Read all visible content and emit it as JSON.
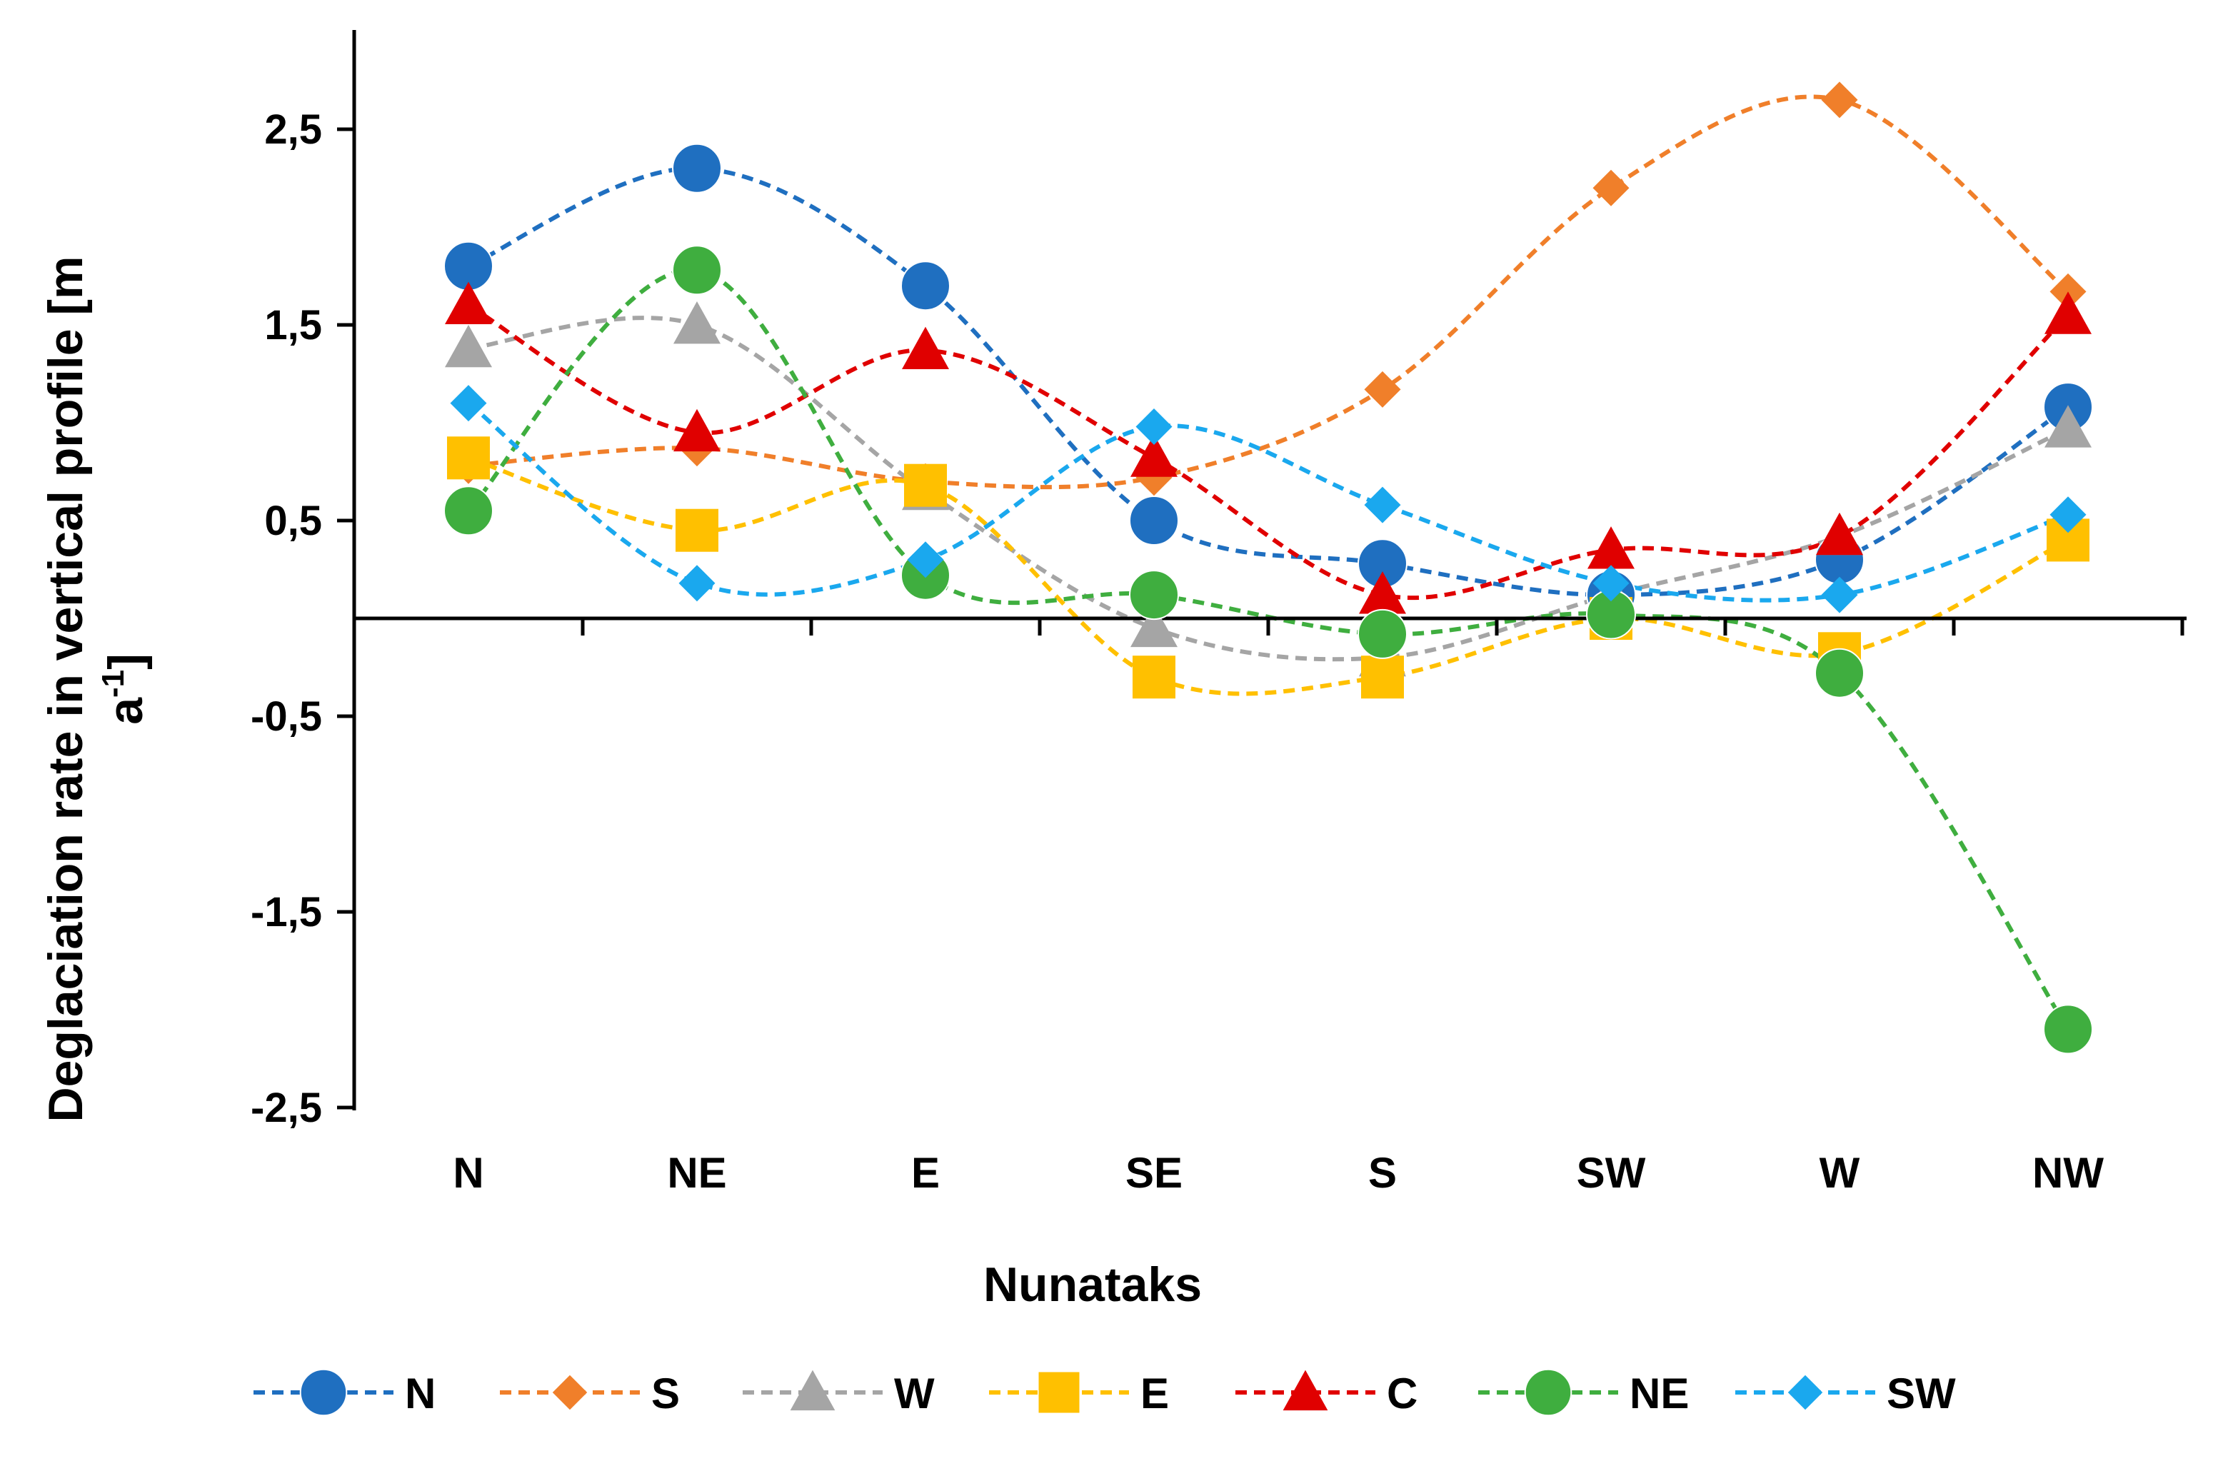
{
  "chart_data": {
    "type": "line",
    "xlabel": "Nunataks",
    "ylabel": [
      "Deglaciation rate in vertical profile [m",
      "a",
      "-1",
      "]"
    ],
    "categories": [
      "N",
      "NE",
      "E",
      "SE",
      "S",
      "SW",
      "W",
      "NW"
    ],
    "ylim": [
      -2.5,
      3
    ],
    "yticks": [
      2.5,
      1.5,
      0.5,
      -0.5,
      -1.5,
      -2.5
    ],
    "ytick_labels": [
      "2,5",
      "1,5",
      "0,5",
      "-0,5",
      "-1,5",
      "-2,5"
    ],
    "legend_position": "bottom",
    "grid": false,
    "series": [
      {
        "name": "N",
        "color": "#1f6fc0",
        "marker": "circle",
        "values": [
          1.8,
          2.3,
          1.7,
          0.5,
          0.28,
          0.12,
          0.3,
          1.08
        ]
      },
      {
        "name": "S",
        "color": "#f07f2a",
        "marker": "diamond",
        "values": [
          0.78,
          0.87,
          0.7,
          0.72,
          1.17,
          2.2,
          2.65,
          1.67
        ]
      },
      {
        "name": "W",
        "color": "#a5a5a5",
        "marker": "triangle",
        "values": [
          1.38,
          1.5,
          0.65,
          -0.05,
          -0.2,
          0.12,
          0.42,
          0.97
        ]
      },
      {
        "name": "E",
        "color": "#ffc000",
        "marker": "square",
        "values": [
          0.82,
          0.45,
          0.68,
          -0.3,
          -0.3,
          0.0,
          -0.18,
          0.4
        ]
      },
      {
        "name": "C",
        "color": "#e00000",
        "marker": "triangle",
        "values": [
          1.6,
          0.95,
          1.37,
          0.82,
          0.12,
          0.35,
          0.42,
          1.55
        ]
      },
      {
        "name": "NE",
        "color": "#3fae3f",
        "marker": "circle",
        "values": [
          0.55,
          1.78,
          0.22,
          0.12,
          -0.08,
          0.02,
          -0.28,
          -2.1
        ]
      },
      {
        "name": "SW",
        "color": "#1aa8ee",
        "marker": "diamond",
        "values": [
          1.1,
          0.18,
          0.3,
          0.98,
          0.58,
          0.18,
          0.12,
          0.53
        ]
      }
    ]
  }
}
